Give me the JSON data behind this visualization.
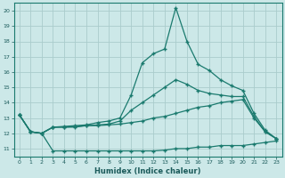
{
  "xlabel": "Humidex (Indice chaleur)",
  "bg_color": "#cce8e8",
  "grid_color": "#aacccc",
  "line_color": "#1a7a6e",
  "ylim": [
    10.5,
    20.5
  ],
  "xlim": [
    -0.5,
    23.5
  ],
  "yticks": [
    11,
    12,
    13,
    14,
    15,
    16,
    17,
    18,
    19,
    20
  ],
  "xticks": [
    0,
    1,
    2,
    3,
    4,
    5,
    6,
    7,
    8,
    9,
    10,
    11,
    12,
    13,
    14,
    15,
    16,
    17,
    18,
    19,
    20,
    21,
    22,
    23
  ],
  "line1_x": [
    0,
    1,
    2,
    3,
    4,
    5,
    6,
    7,
    8,
    9,
    10,
    11,
    12,
    13,
    14,
    15,
    16,
    17,
    18,
    19,
    20,
    21,
    22,
    23
  ],
  "line1_y": [
    13.2,
    12.1,
    12.0,
    10.85,
    10.85,
    10.85,
    10.85,
    10.85,
    10.85,
    10.85,
    10.85,
    10.85,
    10.85,
    10.9,
    11.0,
    11.0,
    11.1,
    11.1,
    11.2,
    11.2,
    11.2,
    11.3,
    11.4,
    11.5
  ],
  "line2_x": [
    0,
    1,
    2,
    3,
    4,
    5,
    6,
    7,
    8,
    9,
    10,
    11,
    12,
    13,
    14,
    15,
    16,
    17,
    18,
    19,
    20,
    21,
    22,
    23
  ],
  "line2_y": [
    13.2,
    12.1,
    12.0,
    12.4,
    12.4,
    12.4,
    12.5,
    12.5,
    12.55,
    12.6,
    12.7,
    12.8,
    13.0,
    13.1,
    13.3,
    13.5,
    13.7,
    13.8,
    14.0,
    14.1,
    14.2,
    13.0,
    12.1,
    11.65
  ],
  "line3_x": [
    0,
    1,
    2,
    3,
    4,
    5,
    6,
    7,
    8,
    9,
    10,
    11,
    12,
    13,
    14,
    15,
    16,
    17,
    18,
    19,
    20,
    21,
    22,
    23
  ],
  "line3_y": [
    13.2,
    12.1,
    12.0,
    12.4,
    12.4,
    12.45,
    12.5,
    12.55,
    12.6,
    12.8,
    13.5,
    14.0,
    14.5,
    15.0,
    15.5,
    15.2,
    14.8,
    14.6,
    14.5,
    14.4,
    14.4,
    13.1,
    12.1,
    11.65
  ],
  "line4_x": [
    0,
    1,
    2,
    3,
    4,
    5,
    6,
    7,
    8,
    9,
    10,
    11,
    12,
    13,
    14,
    15,
    16,
    17,
    18,
    19,
    20,
    21,
    22,
    23
  ],
  "line4_y": [
    13.2,
    12.1,
    12.0,
    12.4,
    12.45,
    12.5,
    12.55,
    12.7,
    12.8,
    13.0,
    14.5,
    16.6,
    17.2,
    17.5,
    20.2,
    18.0,
    16.5,
    16.1,
    15.5,
    15.1,
    14.8,
    13.3,
    12.2,
    11.65
  ]
}
